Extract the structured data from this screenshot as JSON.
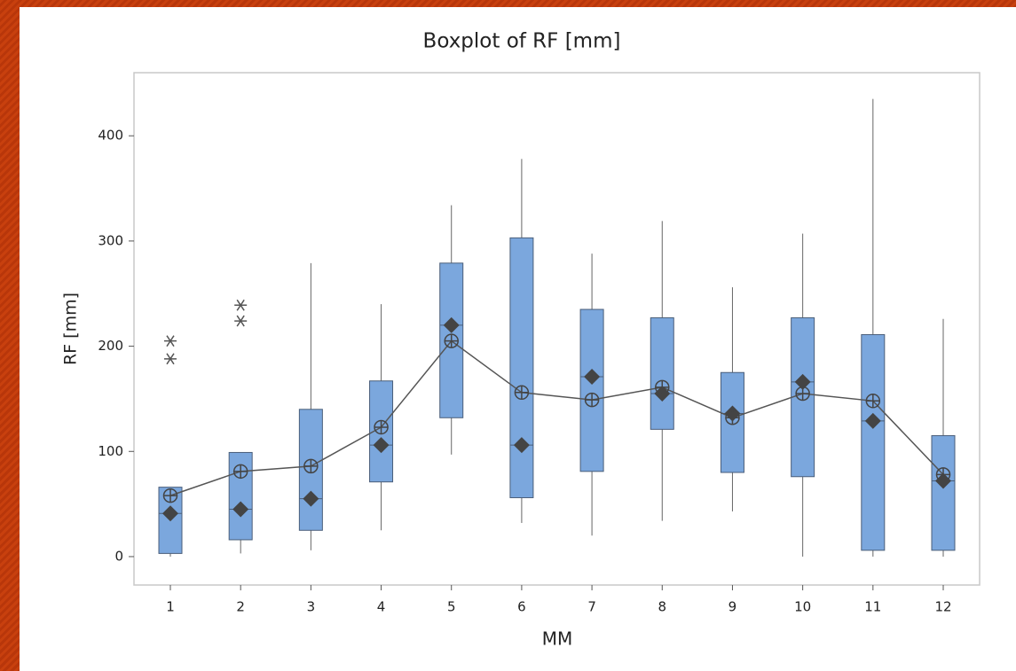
{
  "chart_data": {
    "type": "box",
    "title": "Boxplot of RF [mm]",
    "x_label": "MM",
    "y_label": "RF [mm]",
    "categories": [
      "1",
      "2",
      "3",
      "4",
      "5",
      "6",
      "7",
      "8",
      "9",
      "10",
      "11",
      "12"
    ],
    "boxes": [
      {
        "min": 0,
        "q1": 3,
        "median": 41,
        "q3": 66,
        "max": 66,
        "mean": 58,
        "outliers": [
          188,
          205
        ]
      },
      {
        "min": 3,
        "q1": 16,
        "median": 45,
        "q3": 99,
        "max": 99,
        "mean": 81,
        "outliers": [
          224,
          239
        ]
      },
      {
        "min": 6,
        "q1": 25,
        "median": 55,
        "q3": 140,
        "max": 279,
        "mean": 86,
        "outliers": []
      },
      {
        "min": 25,
        "q1": 71,
        "median": 106,
        "q3": 167,
        "max": 240,
        "mean": 123,
        "outliers": []
      },
      {
        "min": 97,
        "q1": 132,
        "median": 220,
        "q3": 279,
        "max": 334,
        "mean": 205,
        "outliers": []
      },
      {
        "min": 32,
        "q1": 56,
        "median": 106,
        "q3": 303,
        "max": 378,
        "mean": 156,
        "outliers": []
      },
      {
        "min": 20,
        "q1": 81,
        "median": 171,
        "q3": 235,
        "max": 288,
        "mean": 149,
        "outliers": []
      },
      {
        "min": 34,
        "q1": 121,
        "median": 155,
        "q3": 227,
        "max": 319,
        "mean": 161,
        "outliers": []
      },
      {
        "min": 43,
        "q1": 80,
        "median": 136,
        "q3": 175,
        "max": 256,
        "mean": 132,
        "outliers": []
      },
      {
        "min": 0,
        "q1": 76,
        "median": 166,
        "q3": 227,
        "max": 307,
        "mean": 155,
        "outliers": []
      },
      {
        "min": 0,
        "q1": 6,
        "median": 129,
        "q3": 211,
        "max": 435,
        "mean": 148,
        "outliers": []
      },
      {
        "min": 0,
        "q1": 6,
        "median": 72,
        "q3": 115,
        "max": 226,
        "mean": 78,
        "outliers": []
      }
    ],
    "color": "#7ba7dd",
    "ylim": [
      -27,
      460
    ],
    "yticks": [
      0,
      100,
      200,
      300,
      400
    ]
  }
}
